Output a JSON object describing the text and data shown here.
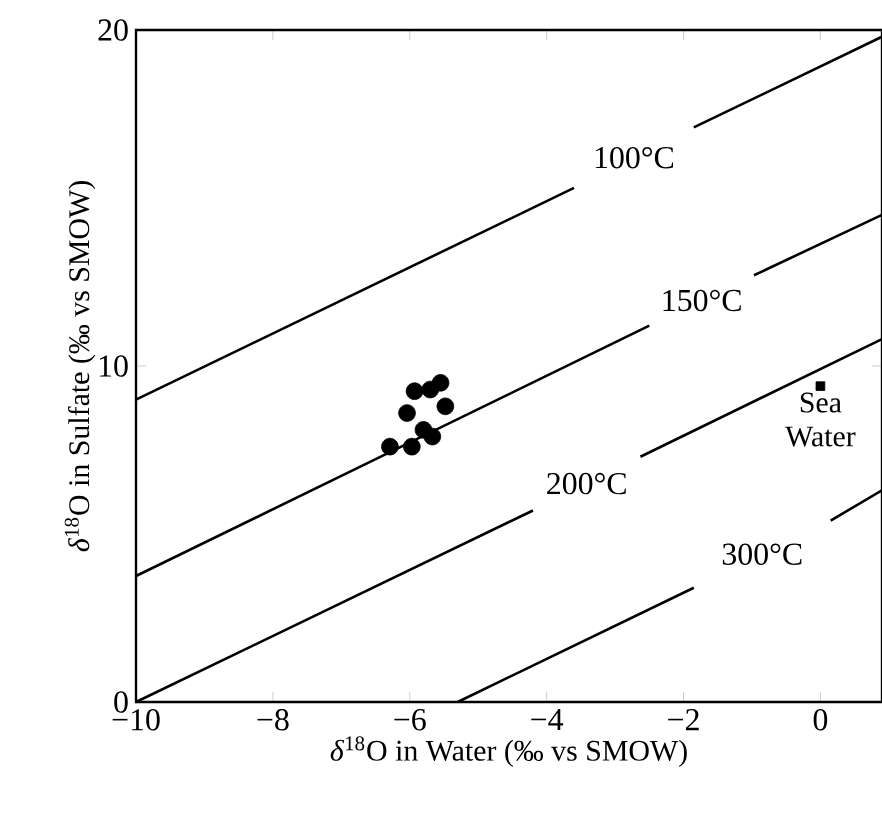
{
  "chart_data": {
    "type": "line",
    "xlabel": "*δ*$^{18}$O in Water (‰ vs SMOW)",
    "ylabel": "*δ*$^{18}$O in Sulfate (‰ vs SMOW)",
    "xlim": [
      -10,
      0.9
    ],
    "ylim": [
      0,
      20
    ],
    "xticks": [
      {
        "value": -10,
        "label": "−10"
      },
      {
        "value": -8,
        "label": "−8"
      },
      {
        "value": -6,
        "label": "−6"
      },
      {
        "value": -4,
        "label": "−4"
      },
      {
        "value": -2,
        "label": "−2"
      },
      0
    ],
    "yticks": [
      0,
      10,
      20
    ],
    "grid": false,
    "series": [
      {
        "name": "100°C",
        "color": "#000000",
        "line_style": "solid",
        "marker": "none",
        "x": [
          -10,
          -3.6,
          null,
          -1.85,
          0.9
        ],
        "values": [
          9.0,
          15.3,
          null,
          17.1,
          19.8
        ]
      },
      {
        "name": "150°C",
        "color": "#000000",
        "line_style": "solid",
        "marker": "none",
        "x": [
          -10,
          -2.5,
          null,
          -0.97,
          0.9
        ],
        "values": [
          3.75,
          11.2,
          null,
          12.7,
          14.5
        ]
      },
      {
        "name": "200°C",
        "color": "#000000",
        "line_style": "solid",
        "marker": "none",
        "x": [
          -10,
          -4.2,
          null,
          -2.63,
          0.9
        ],
        "values": [
          0,
          5.7,
          null,
          7.3,
          10.8
        ]
      },
      {
        "name": "300°C",
        "color": "#000000",
        "line_style": "solid",
        "marker": "none",
        "x": [
          -5.3,
          -1.85,
          null,
          0.15,
          0.9
        ],
        "values": [
          0,
          3.4,
          null,
          5.4,
          6.3
        ]
      },
      {
        "type": "scatter",
        "color": "#000000",
        "marker": "circle",
        "x": [
          -6.29,
          -5.97,
          -5.67,
          -5.8,
          -6.04,
          -5.93,
          -5.7,
          -5.55,
          -5.48
        ],
        "values": [
          7.6,
          7.6,
          7.9,
          8.1,
          8.6,
          9.25,
          9.3,
          9.5,
          8.8
        ]
      },
      {
        "type": "scatter",
        "color": "#000000",
        "marker": "square",
        "x": [
          0
        ],
        "values": [
          9.4
        ]
      }
    ],
    "annotations": [
      {
        "text": "Sea Water",
        "x": 0,
        "y": 9.4
      }
    ]
  }
}
